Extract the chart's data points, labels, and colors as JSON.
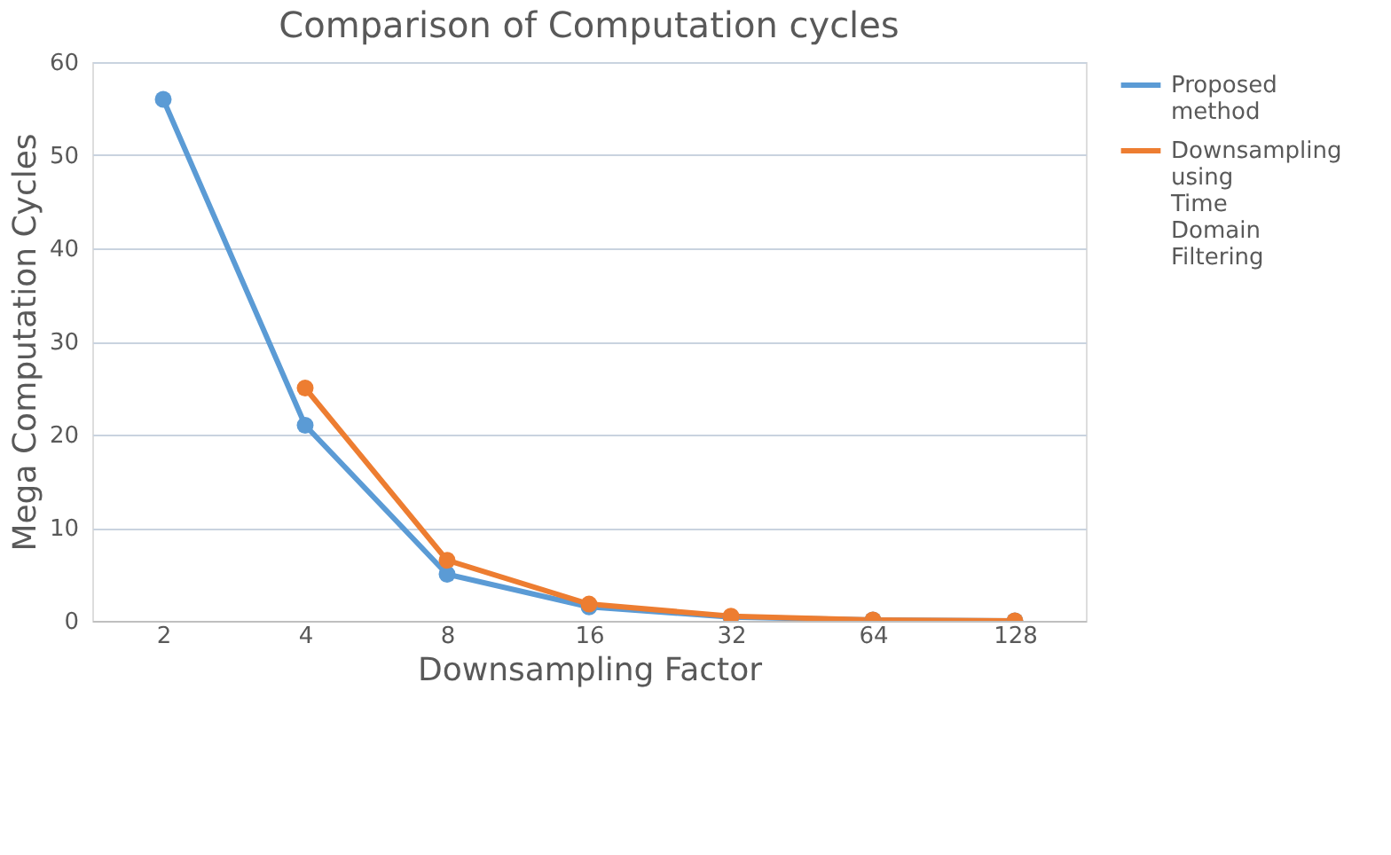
{
  "chart_data": {
    "type": "line",
    "title": "Comparison of Computation cycles",
    "xlabel": "Downsampling Factor",
    "ylabel": "Mega Computation Cycles",
    "categories": [
      "2",
      "4",
      "8",
      "16",
      "32",
      "64",
      "128"
    ],
    "series": [
      {
        "name": "Proposed method",
        "color": "#5b9bd5",
        "values": [
          56,
          21,
          5,
          1.5,
          0.4,
          0.1,
          0
        ]
      },
      {
        "name": "Downsampling using Time Domain Filtering",
        "color": "#ed7d31",
        "values": [
          null,
          25,
          6.5,
          1.8,
          0.5,
          0.1,
          0
        ]
      }
    ],
    "ylim": [
      0,
      60
    ],
    "yticks": [
      0,
      10,
      20,
      30,
      40,
      50,
      60
    ],
    "grid": "y",
    "legend": "right",
    "marker": "circle",
    "line_style": "solid"
  }
}
